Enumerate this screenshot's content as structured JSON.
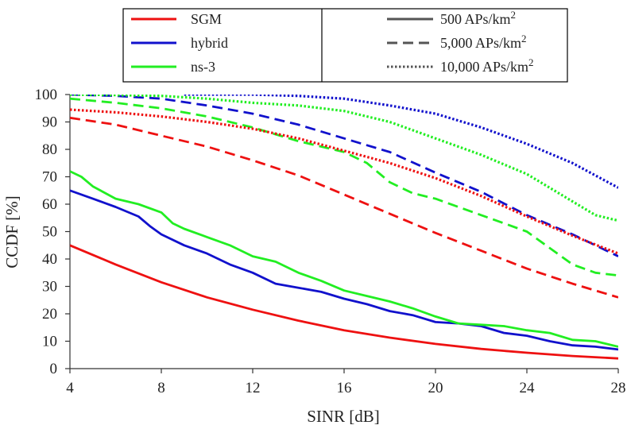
{
  "chart_data": {
    "type": "line",
    "title": "",
    "xlabel": "SINR [dB]",
    "ylabel": "CCDF [%]",
    "xlim": [
      4,
      28
    ],
    "ylim": [
      0,
      100
    ],
    "xticks": [
      4,
      8,
      12,
      16,
      20,
      24,
      28
    ],
    "yticks": [
      0,
      10,
      20,
      30,
      40,
      50,
      60,
      70,
      80,
      90,
      100
    ],
    "grid": false,
    "legend_models": [
      {
        "name": "SGM",
        "color": "#ee1111"
      },
      {
        "name": "hybrid",
        "color": "#1111cc"
      },
      {
        "name": "ns-3",
        "color": "#22ee22"
      }
    ],
    "legend_densities": [
      {
        "label": "500 APs/km",
        "sup": "2",
        "style": "solid"
      },
      {
        "label": "5,000 APs/km",
        "sup": "2",
        "style": "dashed"
      },
      {
        "label": "10,000 APs/km",
        "sup": "2",
        "style": "dotted"
      }
    ],
    "series": [
      {
        "name": "SGM, 500 APs/km2",
        "model": "SGM",
        "style": "solid",
        "color": "#ee1111",
        "x": [
          4,
          6,
          8,
          10,
          12,
          14,
          16,
          18,
          20,
          22,
          24,
          26,
          28
        ],
        "y": [
          45,
          38,
          31.5,
          26,
          21.5,
          17.5,
          14,
          11.3,
          9,
          7.2,
          5.8,
          4.6,
          3.7
        ]
      },
      {
        "name": "hybrid, 500 APs/km2",
        "model": "hybrid",
        "style": "solid",
        "color": "#1111cc",
        "x": [
          4,
          5,
          6,
          7,
          7.5,
          8,
          9,
          10,
          11,
          12,
          13,
          14,
          15,
          16,
          17,
          18,
          19,
          20,
          21,
          22,
          23,
          24,
          25,
          26,
          27,
          28
        ],
        "y": [
          65,
          62,
          59,
          55.5,
          52,
          49,
          45,
          42,
          38,
          35,
          31,
          29.5,
          28,
          25.5,
          23.5,
          21,
          19.5,
          17,
          16.5,
          15.5,
          13,
          12,
          10,
          8.5,
          8,
          7
        ]
      },
      {
        "name": "ns-3, 500 APs/km2",
        "model": "ns-3",
        "style": "solid",
        "color": "#22ee22",
        "x": [
          4,
          4.5,
          5,
          6,
          7,
          8,
          8.5,
          9,
          10,
          11,
          12,
          13,
          14,
          15,
          16,
          17,
          18,
          19,
          20,
          21,
          22,
          23,
          24,
          25,
          26,
          27,
          28
        ],
        "y": [
          72,
          70,
          66.5,
          62,
          60,
          57,
          53,
          51,
          48,
          45,
          41,
          39,
          35,
          32,
          28.5,
          26.5,
          24.5,
          22,
          19,
          16.5,
          16,
          15.5,
          14,
          13,
          10.5,
          10,
          8
        ]
      },
      {
        "name": "SGM, 5,000 APs/km2",
        "model": "SGM",
        "style": "dashed",
        "color": "#ee1111",
        "x": [
          4,
          6,
          8,
          10,
          12,
          14,
          16,
          18,
          20,
          22,
          24,
          26,
          28
        ],
        "y": [
          91.5,
          89,
          85,
          81,
          76,
          70.5,
          63.5,
          56.5,
          49.5,
          43,
          36.5,
          31,
          26
        ]
      },
      {
        "name": "hybrid, 5,000 APs/km2",
        "model": "hybrid",
        "style": "dashed",
        "color": "#1111cc",
        "x": [
          4,
          6,
          8,
          10,
          12,
          14,
          16,
          18,
          20,
          22,
          24,
          26,
          28
        ],
        "y": [
          100,
          99.5,
          98.5,
          96,
          93,
          89,
          84,
          79,
          71.5,
          64.5,
          56,
          49,
          41
        ]
      },
      {
        "name": "ns-3, 5,000 APs/km2",
        "model": "ns-3",
        "style": "dashed",
        "color": "#22ee22",
        "x": [
          4,
          6,
          8,
          10,
          12,
          14,
          16,
          17,
          18,
          19,
          20,
          21,
          22,
          23,
          24,
          25,
          26,
          27,
          28
        ],
        "y": [
          98.5,
          97,
          95,
          92,
          88,
          83,
          79,
          75,
          68,
          64,
          62,
          59,
          56,
          53,
          50,
          44,
          38,
          35,
          34
        ]
      },
      {
        "name": "SGM, 10,000 APs/km2",
        "model": "SGM",
        "style": "dotted",
        "color": "#ee1111",
        "x": [
          4,
          6,
          8,
          10,
          12,
          14,
          16,
          18,
          20,
          22,
          24,
          26,
          28
        ],
        "y": [
          94.5,
          93.5,
          92,
          90,
          87.5,
          84,
          79.5,
          75,
          69.5,
          63,
          55.5,
          48.5,
          42
        ]
      },
      {
        "name": "hybrid, 10,000 APs/km2",
        "model": "hybrid",
        "style": "dotted",
        "color": "#1111cc",
        "x": [
          9,
          12,
          14,
          16,
          18,
          20,
          22,
          24,
          26,
          28
        ],
        "y": [
          100,
          100,
          99.5,
          98.5,
          96,
          93,
          88,
          82,
          75,
          66
        ]
      },
      {
        "name": "ns-3, 10,000 APs/km2",
        "model": "ns-3",
        "style": "dotted",
        "color": "#22ee22",
        "x": [
          4,
          6,
          8,
          10,
          12,
          14,
          16,
          18,
          20,
          22,
          24,
          26,
          27,
          28
        ],
        "y": [
          100,
          99.8,
          99.5,
          98.5,
          97,
          96,
          94,
          90,
          84,
          78,
          71,
          61,
          56,
          54
        ]
      }
    ]
  }
}
